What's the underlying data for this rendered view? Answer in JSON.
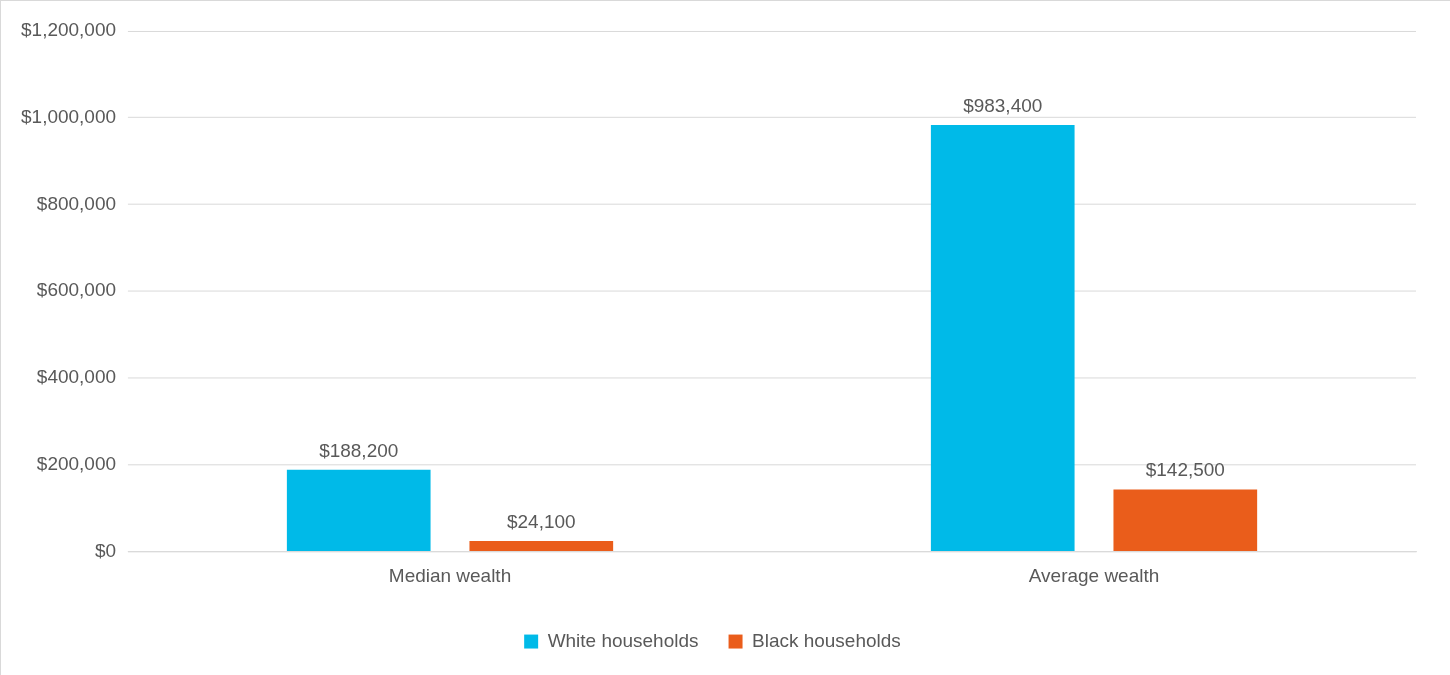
{
  "chart_data": {
    "type": "bar",
    "categories": [
      "Median wealth",
      "Average wealth"
    ],
    "series": [
      {
        "name": "White households",
        "color": "#00bae8",
        "values": [
          188200,
          983400
        ],
        "value_labels": [
          "$188,200",
          "$983,400"
        ]
      },
      {
        "name": "Black households",
        "color": "#ea5d1b",
        "values": [
          24100,
          142500
        ],
        "value_labels": [
          "$24,100",
          "$142,500"
        ]
      }
    ],
    "ylim": [
      0,
      1200000
    ],
    "yticks": [
      {
        "value": 0,
        "label": "$0"
      },
      {
        "value": 200000,
        "label": "$200,000"
      },
      {
        "value": 400000,
        "label": "$400,000"
      },
      {
        "value": 600000,
        "label": "$600,000"
      },
      {
        "value": 800000,
        "label": "$800,000"
      },
      {
        "value": 1000000,
        "label": "$1,000,000"
      },
      {
        "value": 1200000,
        "label": "$1,200,000"
      }
    ],
    "grid": "y",
    "legend": "bottom"
  }
}
